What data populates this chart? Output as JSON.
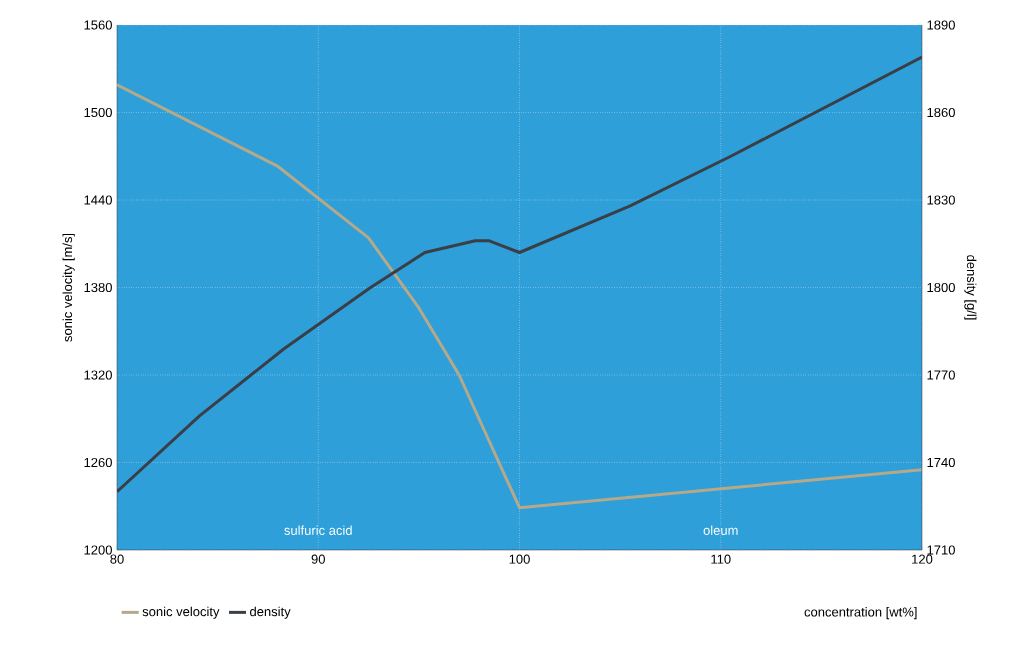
{
  "chart_data": {
    "type": "line",
    "xlabel": "concentration [wt%]",
    "ylabel": "sonic velocity [m/s]",
    "y2label": "density [g/l]",
    "x": [
      80,
      88,
      92.5,
      95,
      97,
      100,
      120
    ],
    "series": [
      {
        "name": "sonic velocity",
        "color": "#b5a98a",
        "values": [
          1519,
          1463,
          1414,
          1366,
          1320,
          1229,
          1255
        ]
      },
      {
        "name": "density",
        "color": "#3a3f47",
        "axis": "y2",
        "x": [
          80,
          84.1,
          88.3,
          92.6,
          95.3,
          97.8,
          98.5,
          100,
          105.5,
          110.5,
          120
        ],
        "values": [
          1730,
          1756,
          1779,
          1800,
          1812,
          1816,
          1816,
          1812,
          1828,
          1845,
          1879
        ]
      }
    ],
    "xlim": [
      80,
      120
    ],
    "xticks": [
      80,
      90,
      100,
      110,
      120
    ],
    "ylim": [
      1200,
      1560
    ],
    "yticks": [
      1200,
      1260,
      1320,
      1380,
      1440,
      1500,
      1560
    ],
    "y2lim": [
      1710,
      1890
    ],
    "y2ticks": [
      1710,
      1740,
      1770,
      1800,
      1830,
      1860,
      1890
    ],
    "annotations": [
      "sulfuric acid",
      "oleum"
    ],
    "grid": true,
    "legend": "bottom",
    "marker": "none",
    "line_style": "solid"
  }
}
